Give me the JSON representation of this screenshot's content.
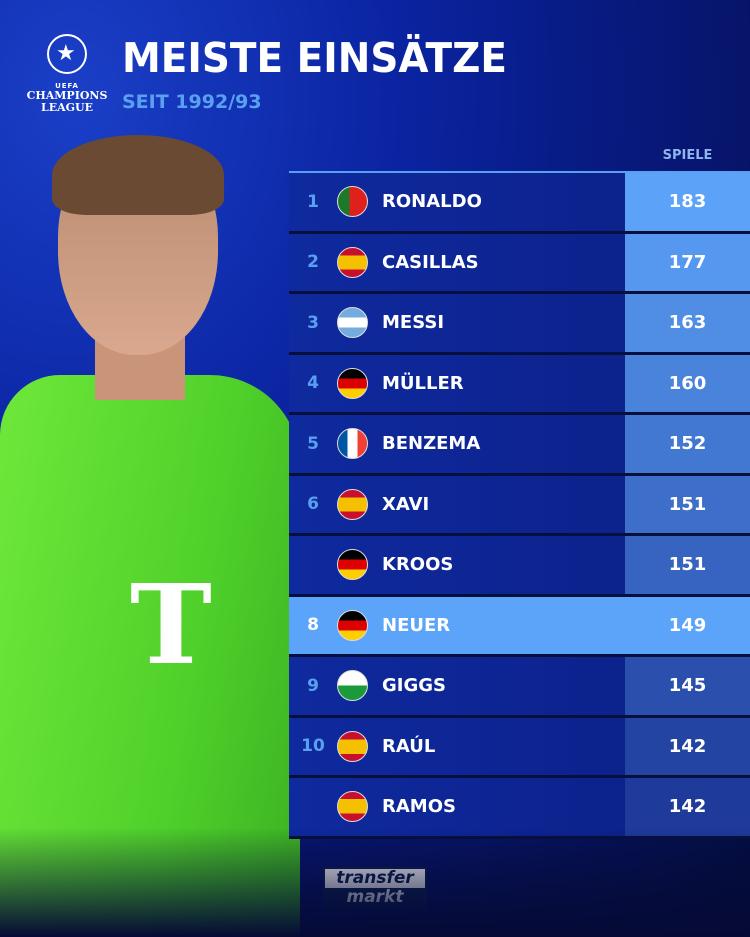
{
  "logo": {
    "org": "UEFA",
    "name": "CHAMPIONS",
    "name2": "LEAGUE"
  },
  "title": "MEISTE EINSÄTZE",
  "subtitle": "SEIT 1992/93",
  "column_header": "SPIELE",
  "rows": [
    {
      "rank": "1",
      "name": "RONALDO",
      "flag": "portugal",
      "value": "183"
    },
    {
      "rank": "2",
      "name": "CASILLAS",
      "flag": "spain",
      "value": "177"
    },
    {
      "rank": "3",
      "name": "MESSI",
      "flag": "argentina",
      "value": "163"
    },
    {
      "rank": "4",
      "name": "MÜLLER",
      "flag": "germany",
      "value": "160"
    },
    {
      "rank": "5",
      "name": "BENZEMA",
      "flag": "france",
      "value": "152"
    },
    {
      "rank": "6",
      "name": "XAVI",
      "flag": "spain",
      "value": "151"
    },
    {
      "rank": "",
      "name": "KROOS",
      "flag": "germany",
      "value": "151"
    },
    {
      "rank": "8",
      "name": "NEUER",
      "flag": "germany",
      "value": "149",
      "highlight": true
    },
    {
      "rank": "9",
      "name": "GIGGS",
      "flag": "wales",
      "value": "145"
    },
    {
      "rank": "10",
      "name": "RAÚL",
      "flag": "spain",
      "value": "142"
    },
    {
      "rank": "",
      "name": "RAMOS",
      "flag": "spain",
      "value": "142"
    }
  ],
  "brand": {
    "line1": "transfer",
    "line2": "markt"
  },
  "colors": {
    "accent": "#5aa0f0",
    "highlight": "#5ca4fa",
    "background": "#0a23a0"
  }
}
